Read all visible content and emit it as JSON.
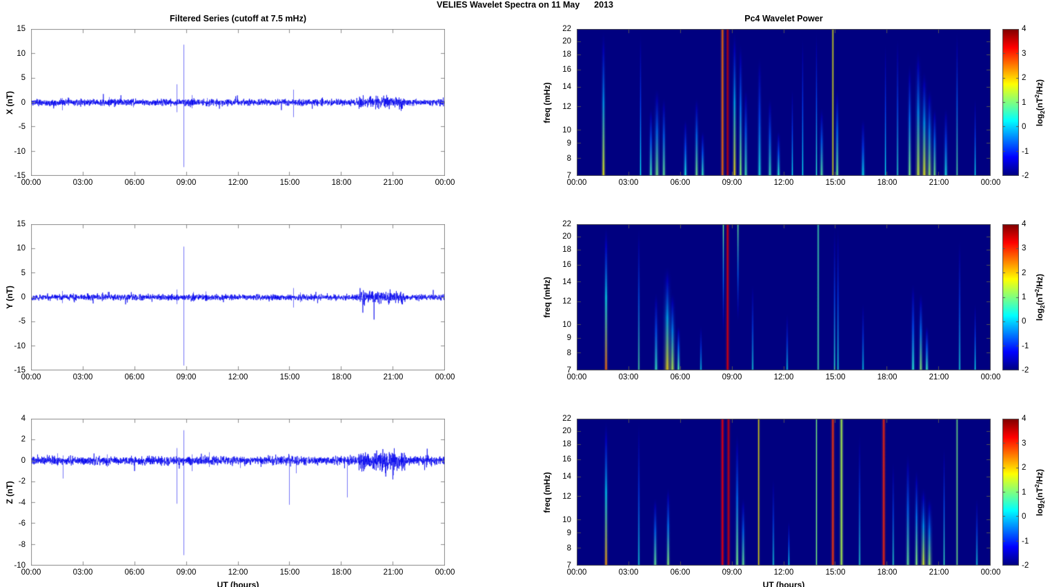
{
  "figure_title": "VELIES Wavelet Spectra on 11 May      2013",
  "chart_data": {
    "left_column": {
      "type": "line",
      "title": "Filtered Series (cutoff at 7.5 mHz)",
      "xlabel": "UT (hours)",
      "x_ticks": [
        "00:00",
        "03:00",
        "06:00",
        "09:00",
        "12:00",
        "15:00",
        "18:00",
        "21:00",
        "00:00"
      ],
      "x_range_hours": [
        0,
        24
      ],
      "line_color": "#0000ee",
      "grid": false,
      "panels": [
        {
          "ylabel": "X (nT)",
          "ylim": [
            -15,
            15
          ],
          "y_ticks": [
            15,
            10,
            5,
            0,
            -5,
            -10,
            -15
          ],
          "noise_std": 0.32,
          "noisy_periods": [
            {
              "from": 19.0,
              "to": 21.6,
              "std": 0.62
            }
          ],
          "seed": 11,
          "spikes": [
            {
              "t": 1.8,
              "up": 0.9,
              "down": -1.6
            },
            {
              "t": 4.5,
              "up": 1.1,
              "down": -0.9
            },
            {
              "t": 5.9,
              "up": 0.8,
              "down": -1.0
            },
            {
              "t": 8.45,
              "up": 3.7,
              "down": -2.0
            },
            {
              "t": 8.85,
              "up": 11.8,
              "down": -13.2
            },
            {
              "t": 9.3,
              "up": 1.5,
              "down": -1.2
            },
            {
              "t": 10.2,
              "up": 0.9,
              "down": -0.8
            },
            {
              "t": 15.2,
              "up": 2.6,
              "down": -3.0
            },
            {
              "t": 16.8,
              "up": 0.7,
              "down": -0.7
            },
            {
              "t": 22.3,
              "up": 0.8,
              "down": -0.6
            }
          ]
        },
        {
          "ylabel": "Y (nT)",
          "ylim": [
            -15,
            15
          ],
          "y_ticks": [
            15,
            10,
            5,
            0,
            -5,
            -10,
            -15
          ],
          "noise_std": 0.3,
          "noisy_periods": [
            {
              "from": 19.0,
              "to": 21.6,
              "std": 0.58
            }
          ],
          "seed": 22,
          "spikes": [
            {
              "t": 1.8,
              "up": 1.3,
              "down": -1.2
            },
            {
              "t": 3.3,
              "up": 0.7,
              "down": -0.6
            },
            {
              "t": 8.45,
              "up": 1.6,
              "down": -1.4
            },
            {
              "t": 8.85,
              "up": 10.4,
              "down": -14.0
            },
            {
              "t": 9.4,
              "up": 1.1,
              "down": -0.9
            },
            {
              "t": 10.1,
              "up": 1.2,
              "down": -0.8
            },
            {
              "t": 15.2,
              "up": 1.9,
              "down": -2.1
            },
            {
              "t": 15.6,
              "up": 1.0,
              "down": -1.0
            },
            {
              "t": 22.3,
              "up": 0.6,
              "down": -0.5
            }
          ]
        },
        {
          "ylabel": "Z (nT)",
          "ylim": [
            -10,
            4
          ],
          "y_ticks": [
            4,
            2,
            0,
            -2,
            -4,
            -6,
            -8,
            -10
          ],
          "noise_std": 0.2,
          "noisy_periods": [
            {
              "from": 19.0,
              "to": 21.7,
              "std": 0.42
            }
          ],
          "seed": 33,
          "spikes": [
            {
              "t": 1.5,
              "up": 0.7,
              "down": -0.5
            },
            {
              "t": 1.85,
              "up": 0.5,
              "down": -1.7
            },
            {
              "t": 4.4,
              "up": 0.6,
              "down": -0.6
            },
            {
              "t": 8.45,
              "up": 1.2,
              "down": -4.1
            },
            {
              "t": 8.85,
              "up": 2.9,
              "down": -9.0
            },
            {
              "t": 9.3,
              "up": 0.6,
              "down": -1.0
            },
            {
              "t": 10.3,
              "up": 0.8,
              "down": -0.6
            },
            {
              "t": 12.1,
              "up": 0.4,
              "down": -0.7
            },
            {
              "t": 14.95,
              "up": 0.5,
              "down": -4.2
            },
            {
              "t": 15.35,
              "up": 0.4,
              "down": -1.2
            },
            {
              "t": 18.3,
              "up": 0.4,
              "down": -3.5
            },
            {
              "t": 21.0,
              "up": 0.5,
              "down": -1.4
            },
            {
              "t": 23.2,
              "up": 0.4,
              "down": -0.6
            }
          ]
        }
      ]
    },
    "right_column": {
      "type": "heatmap",
      "title": "Pc4 Wavelet Power",
      "xlabel": "UT (hours)",
      "ylabel": "freq (mHz)",
      "x_ticks": [
        "00:00",
        "03:00",
        "06:00",
        "09:00",
        "12:00",
        "15:00",
        "18:00",
        "21:00",
        "00:00"
      ],
      "x_range_hours": [
        0,
        24
      ],
      "y_ticks": [
        22,
        20,
        18,
        16,
        14,
        12,
        10,
        9,
        8,
        7
      ],
      "freq_range_mhz": [
        7,
        22
      ],
      "y_scale": "log",
      "colormap": "jet",
      "background_value": -2,
      "colorbar": {
        "range": [
          -2,
          4
        ],
        "ticks": [
          4,
          3,
          2,
          1,
          0,
          -1,
          -2
        ],
        "label": {
          "prefix": "log",
          "sub": "2",
          "mid": "(nT",
          "sup": "2",
          "suffix": "/Hz)"
        }
      },
      "panels": [
        {
          "streaks": [
            {
              "t": 1.55,
              "v": 1.7,
              "f_hi": 22,
              "w": 2
            },
            {
              "t": 3.7,
              "v": 0.3,
              "f_hi": 22,
              "w": 1
            },
            {
              "t": 4.3,
              "v": 0.7,
              "f_hi": 12,
              "w": 2
            },
            {
              "t": 4.65,
              "v": 1.0,
              "f_hi": 14,
              "w": 3
            },
            {
              "t": 5.05,
              "v": 0.9,
              "f_hi": 13,
              "w": 2
            },
            {
              "t": 6.3,
              "v": 0.4,
              "f_hi": 11,
              "w": 2
            },
            {
              "t": 6.95,
              "v": 1.0,
              "f_hi": 13,
              "w": 2
            },
            {
              "t": 7.3,
              "v": 0.6,
              "f_hi": 10,
              "w": 2
            },
            {
              "t": 8.45,
              "v": 2.6,
              "f_hi": 22,
              "w": 2,
              "u": true
            },
            {
              "t": 8.75,
              "v": 3.6,
              "f_hi": 22,
              "w": 2,
              "u": true
            },
            {
              "t": 9.15,
              "v": 1.9,
              "f_hi": 22,
              "w": 2
            },
            {
              "t": 9.5,
              "v": 1.1,
              "f_hi": 20,
              "w": 2
            },
            {
              "t": 9.8,
              "v": 0.7,
              "f_hi": 14,
              "w": 2
            },
            {
              "t": 10.6,
              "v": 0.4,
              "f_hi": 18,
              "w": 2
            },
            {
              "t": 11.2,
              "v": 0.6,
              "f_hi": 13,
              "w": 2
            },
            {
              "t": 11.7,
              "v": 0.5,
              "f_hi": 10,
              "w": 2
            },
            {
              "t": 12.5,
              "v": 0.3,
              "f_hi": 14,
              "w": 1
            },
            {
              "t": 13.1,
              "v": 0.3,
              "f_hi": 21,
              "w": 1
            },
            {
              "t": 13.9,
              "v": 0.5,
              "f_hi": 22,
              "w": 1
            },
            {
              "t": 14.2,
              "v": 0.8,
              "f_hi": 12,
              "w": 2
            },
            {
              "t": 14.85,
              "v": 1.7,
              "f_hi": 22,
              "w": 1,
              "u": true
            },
            {
              "t": 15.1,
              "v": 0.9,
              "f_hi": 14,
              "w": 2
            },
            {
              "t": 16.6,
              "v": 0.3,
              "f_hi": 11,
              "w": 2
            },
            {
              "t": 17.9,
              "v": 0.3,
              "f_hi": 20,
              "w": 1
            },
            {
              "t": 18.6,
              "v": 0.5,
              "f_hi": 21,
              "w": 1
            },
            {
              "t": 19.3,
              "v": 1.0,
              "f_hi": 17,
              "w": 2
            },
            {
              "t": 19.8,
              "v": 1.5,
              "f_hi": 19,
              "w": 3
            },
            {
              "t": 20.15,
              "v": 1.7,
              "f_hi": 16,
              "w": 3
            },
            {
              "t": 20.45,
              "v": 1.3,
              "f_hi": 14,
              "w": 3
            },
            {
              "t": 20.75,
              "v": 1.0,
              "f_hi": 12,
              "w": 2
            },
            {
              "t": 21.4,
              "v": 0.4,
              "f_hi": 12,
              "w": 2
            },
            {
              "t": 22.05,
              "v": 0.8,
              "f_hi": 22,
              "w": 1
            },
            {
              "t": 23.1,
              "v": 0.3,
              "f_hi": 13,
              "w": 1
            }
          ]
        },
        {
          "streaks": [
            {
              "t": 1.7,
              "v": 2.6,
              "f_hi": 22,
              "w": 2
            },
            {
              "t": 3.6,
              "v": 0.8,
              "f_hi": 22,
              "w": 1
            },
            {
              "t": 4.6,
              "v": 0.6,
              "f_hi": 13,
              "w": 2
            },
            {
              "t": 5.25,
              "v": 1.9,
              "f_hi": 16,
              "w": 4
            },
            {
              "t": 5.55,
              "v": 1.4,
              "f_hi": 13,
              "w": 3
            },
            {
              "t": 5.9,
              "v": 0.8,
              "f_hi": 10,
              "w": 2
            },
            {
              "t": 7.2,
              "v": 0.3,
              "f_hi": 10,
              "w": 1
            },
            {
              "t": 8.5,
              "v": 0.9,
              "f_hi": 22,
              "f_lo": 9,
              "anchor": "top",
              "w": 1
            },
            {
              "t": 8.75,
              "v": 3.4,
              "f_hi": 22,
              "w": 2,
              "u": true
            },
            {
              "t": 9.35,
              "v": 0.9,
              "f_hi": 22,
              "f_lo": 10,
              "anchor": "top",
              "w": 1
            },
            {
              "t": 10.2,
              "v": 0.4,
              "f_hi": 14,
              "w": 1
            },
            {
              "t": 12.2,
              "v": 0.3,
              "f_hi": 11,
              "w": 1
            },
            {
              "t": 14.0,
              "v": 0.7,
              "f_hi": 22,
              "w": 1,
              "u": true
            },
            {
              "t": 14.95,
              "v": 0.5,
              "f_hi": 22,
              "w": 1
            },
            {
              "t": 15.15,
              "v": 0.4,
              "f_hi": 22,
              "w": 1
            },
            {
              "t": 16.6,
              "v": 0.3,
              "f_hi": 12,
              "w": 1
            },
            {
              "t": 19.5,
              "v": 0.5,
              "f_hi": 14,
              "w": 2
            },
            {
              "t": 19.95,
              "v": 1.1,
              "f_hi": 13,
              "w": 2
            },
            {
              "t": 20.3,
              "v": 0.6,
              "f_hi": 10,
              "w": 2
            },
            {
              "t": 22.2,
              "v": 0.4,
              "f_hi": 20,
              "w": 1
            },
            {
              "t": 23.1,
              "v": 0.3,
              "f_hi": 12,
              "w": 1
            }
          ]
        },
        {
          "streaks": [
            {
              "t": 1.7,
              "v": 2.3,
              "f_hi": 22,
              "w": 2
            },
            {
              "t": 3.6,
              "v": 0.4,
              "f_hi": 22,
              "w": 1
            },
            {
              "t": 4.55,
              "v": 0.9,
              "f_hi": 12,
              "w": 2
            },
            {
              "t": 5.3,
              "v": 1.1,
              "f_hi": 13,
              "w": 2
            },
            {
              "t": 8.45,
              "v": 3.3,
              "f_hi": 22,
              "w": 2,
              "u": true
            },
            {
              "t": 8.8,
              "v": 3.5,
              "f_hi": 22,
              "w": 2,
              "u": true
            },
            {
              "t": 9.3,
              "v": 1.0,
              "f_hi": 20,
              "w": 2
            },
            {
              "t": 9.65,
              "v": 0.9,
              "f_hi": 12,
              "w": 2
            },
            {
              "t": 10.55,
              "v": 1.8,
              "f_hi": 22,
              "w": 1,
              "u": true
            },
            {
              "t": 11.4,
              "v": 0.4,
              "f_hi": 14,
              "w": 1
            },
            {
              "t": 12.3,
              "v": 0.3,
              "f_hi": 10,
              "w": 1
            },
            {
              "t": 13.9,
              "v": 1.0,
              "f_hi": 22,
              "w": 1,
              "u": true
            },
            {
              "t": 14.85,
              "v": 2.9,
              "f_hi": 22,
              "w": 2,
              "u": true
            },
            {
              "t": 15.35,
              "v": 1.3,
              "f_hi": 22,
              "w": 2,
              "u": true
            },
            {
              "t": 16.4,
              "v": 0.5,
              "f_hi": 20,
              "w": 1
            },
            {
              "t": 17.8,
              "v": 3.0,
              "f_hi": 22,
              "w": 2,
              "u": true
            },
            {
              "t": 18.35,
              "v": 0.5,
              "f_hi": 16,
              "w": 1
            },
            {
              "t": 19.2,
              "v": 0.9,
              "f_hi": 17,
              "w": 2
            },
            {
              "t": 19.7,
              "v": 1.1,
              "f_hi": 15,
              "w": 2
            },
            {
              "t": 20.1,
              "v": 1.6,
              "f_hi": 13,
              "w": 3
            },
            {
              "t": 20.45,
              "v": 1.2,
              "f_hi": 12,
              "w": 3
            },
            {
              "t": 21.3,
              "v": 0.6,
              "f_hi": 18,
              "w": 1
            },
            {
              "t": 22.05,
              "v": 1.0,
              "f_hi": 22,
              "w": 1,
              "u": true
            },
            {
              "t": 23.2,
              "v": 0.4,
              "f_hi": 12,
              "w": 1
            }
          ]
        }
      ]
    }
  }
}
